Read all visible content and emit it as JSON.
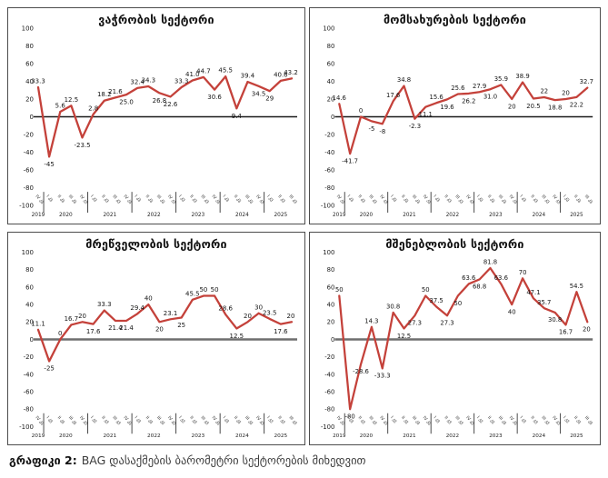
{
  "caption": {
    "prefix": "გრაფიკი 2:",
    "text": "BAG დასაქმების ბარომეტრი სექტორების მიხედვით"
  },
  "chart_data": {
    "type": "line",
    "series_color": "#c4413a",
    "grid": "off",
    "ylim": [
      -100,
      100
    ],
    "y_ticks": [
      100,
      80,
      60,
      40,
      20,
      0,
      -20,
      -40,
      -60,
      -80,
      -100
    ],
    "categories": [
      "IV კვ",
      "I კვ",
      "II კვ",
      "III კვ",
      "IV კვ",
      "I კვ",
      "II კვ",
      "III კვ",
      "IV კვ",
      "I კვ",
      "II კვ",
      "III კვ",
      "IV კვ",
      "I კვ",
      "II კვ",
      "III კვ",
      "IV კვ",
      "I კვ",
      "II კვ",
      "III კვ",
      "IV კვ",
      "I კვ",
      "II კვ",
      "III კვ"
    ],
    "years": [
      {
        "label": "2019",
        "span": 1
      },
      {
        "label": "2020",
        "span": 4
      },
      {
        "label": "2021",
        "span": 4
      },
      {
        "label": "2022",
        "span": 4
      },
      {
        "label": "2023",
        "span": 4
      },
      {
        "label": "2024",
        "span": 4
      },
      {
        "label": "2025",
        "span": 3
      }
    ],
    "charts": [
      {
        "title": "ვაჭრობის სექტორი",
        "values": [
          33.3,
          -45,
          5.6,
          12.5,
          -23.5,
          2.8,
          18.2,
          21.6,
          25.0,
          32.4,
          34.3,
          26.8,
          22.6,
          33.3,
          41.0,
          44.7,
          30.6,
          45.5,
          9.4,
          39.4,
          34.5,
          29,
          40.6,
          43.2
        ],
        "labels": [
          "33.3",
          "-45",
          "5.6",
          "12.5",
          "-23.5",
          "2.8",
          "18.2",
          "21.6",
          "25.0",
          "32.4",
          "34.3",
          "26.8",
          "22.6",
          "33.3",
          "41.0",
          "44.7",
          "30.6",
          "45.5",
          "9.4",
          "39.4",
          "34.5",
          "29",
          "40.6",
          "43.2"
        ],
        "label_positions": [
          "a",
          "b",
          "a",
          "a",
          "b",
          "a",
          "a",
          "a",
          "b",
          "a",
          "a",
          "b",
          "b",
          "a",
          "a",
          "a",
          "b",
          "a",
          "b",
          "a",
          "b",
          "b",
          "a",
          "a"
        ],
        "zero_line_color": "#1a1a1a",
        "zero_line_width": 1.4
      },
      {
        "title": "მომსახურების სექტორი",
        "values": [
          14.6,
          -41.7,
          0,
          -5,
          -8,
          17.6,
          34.8,
          -2.3,
          11.1,
          15.6,
          19.6,
          25.6,
          26.2,
          27.9,
          31.0,
          35.9,
          20,
          38.9,
          20.5,
          22,
          18.8,
          20,
          22.2,
          32.7
        ],
        "labels": [
          "14.6",
          "-41.7",
          "0",
          "-5",
          "-8",
          "17.6",
          "34.8",
          "-2.3",
          "11.1",
          "15.6",
          "19.6",
          "25.6",
          "26.2",
          "27.9",
          "31.0",
          "35.9",
          "20",
          "38.9",
          "20.5",
          "22",
          "18.8",
          "20",
          "22.2",
          "32.7"
        ],
        "label_positions": [
          "a",
          "b",
          "a",
          "b",
          "b",
          "a",
          "a",
          "b",
          "b",
          "a",
          "b",
          "a",
          "b",
          "a",
          "b",
          "a",
          "b",
          "a",
          "b",
          "a",
          "b",
          "a",
          "b",
          "a"
        ],
        "zero_line_color": "#1a1a1a",
        "zero_line_width": 1.4
      },
      {
        "title": "მრეწველობის სექტორი",
        "values": [
          11.1,
          -25,
          0,
          16.7,
          20,
          17.6,
          33.3,
          21.4,
          21.4,
          29.4,
          40,
          20,
          23.1,
          25,
          45.5,
          50,
          50,
          28.6,
          12.5,
          20,
          30,
          23.5,
          17.6,
          20
        ],
        "labels": [
          "11.1",
          "-25",
          "0",
          "16.7",
          "20",
          "17.6",
          "33.3",
          "21.4",
          "21.4",
          "29.4",
          "40",
          "20",
          "23.1",
          "25",
          "45.5",
          "50",
          "50",
          "28.6",
          "12.5",
          "20",
          "30",
          "23.5",
          "17.6",
          "20"
        ],
        "label_positions": [
          "a",
          "b",
          "a",
          "a",
          "a",
          "b",
          "a",
          "b",
          "b",
          "a",
          "a",
          "b",
          "a",
          "b",
          "a",
          "a",
          "a",
          "a",
          "b",
          "a",
          "a",
          "a",
          "b",
          "a"
        ],
        "zero_line_color": "#6e6e6e",
        "zero_line_width": 2.6
      },
      {
        "title": "მშენებლობის სექტორი",
        "values": [
          50,
          -80,
          -28.6,
          14.3,
          -33.3,
          30.8,
          12.5,
          27.3,
          50,
          37.5,
          27.3,
          50,
          63.6,
          68.8,
          81.8,
          63.6,
          40,
          70,
          47.1,
          35.7,
          30.8,
          16.7,
          54.5,
          20
        ],
        "labels": [
          "50",
          "-80",
          "-28.6",
          "14.3",
          "-33.3",
          "30.8",
          "12.5",
          "27.3",
          "50",
          "37.5",
          "27.3",
          "50",
          "63.6",
          "68.8",
          "81.8",
          "63.6",
          "40",
          "70",
          "47.1",
          "35.7",
          "30.8",
          "16.7",
          "54.5",
          "20"
        ],
        "label_positions": [
          "a",
          "b",
          "b",
          "a",
          "b",
          "a",
          "b",
          "b",
          "a",
          "a",
          "b",
          "b",
          "a",
          "b",
          "a",
          "a",
          "b",
          "a",
          "a",
          "a",
          "b",
          "b",
          "a",
          "b"
        ],
        "zero_line_color": "#6e6e6e",
        "zero_line_width": 2.6
      }
    ]
  }
}
